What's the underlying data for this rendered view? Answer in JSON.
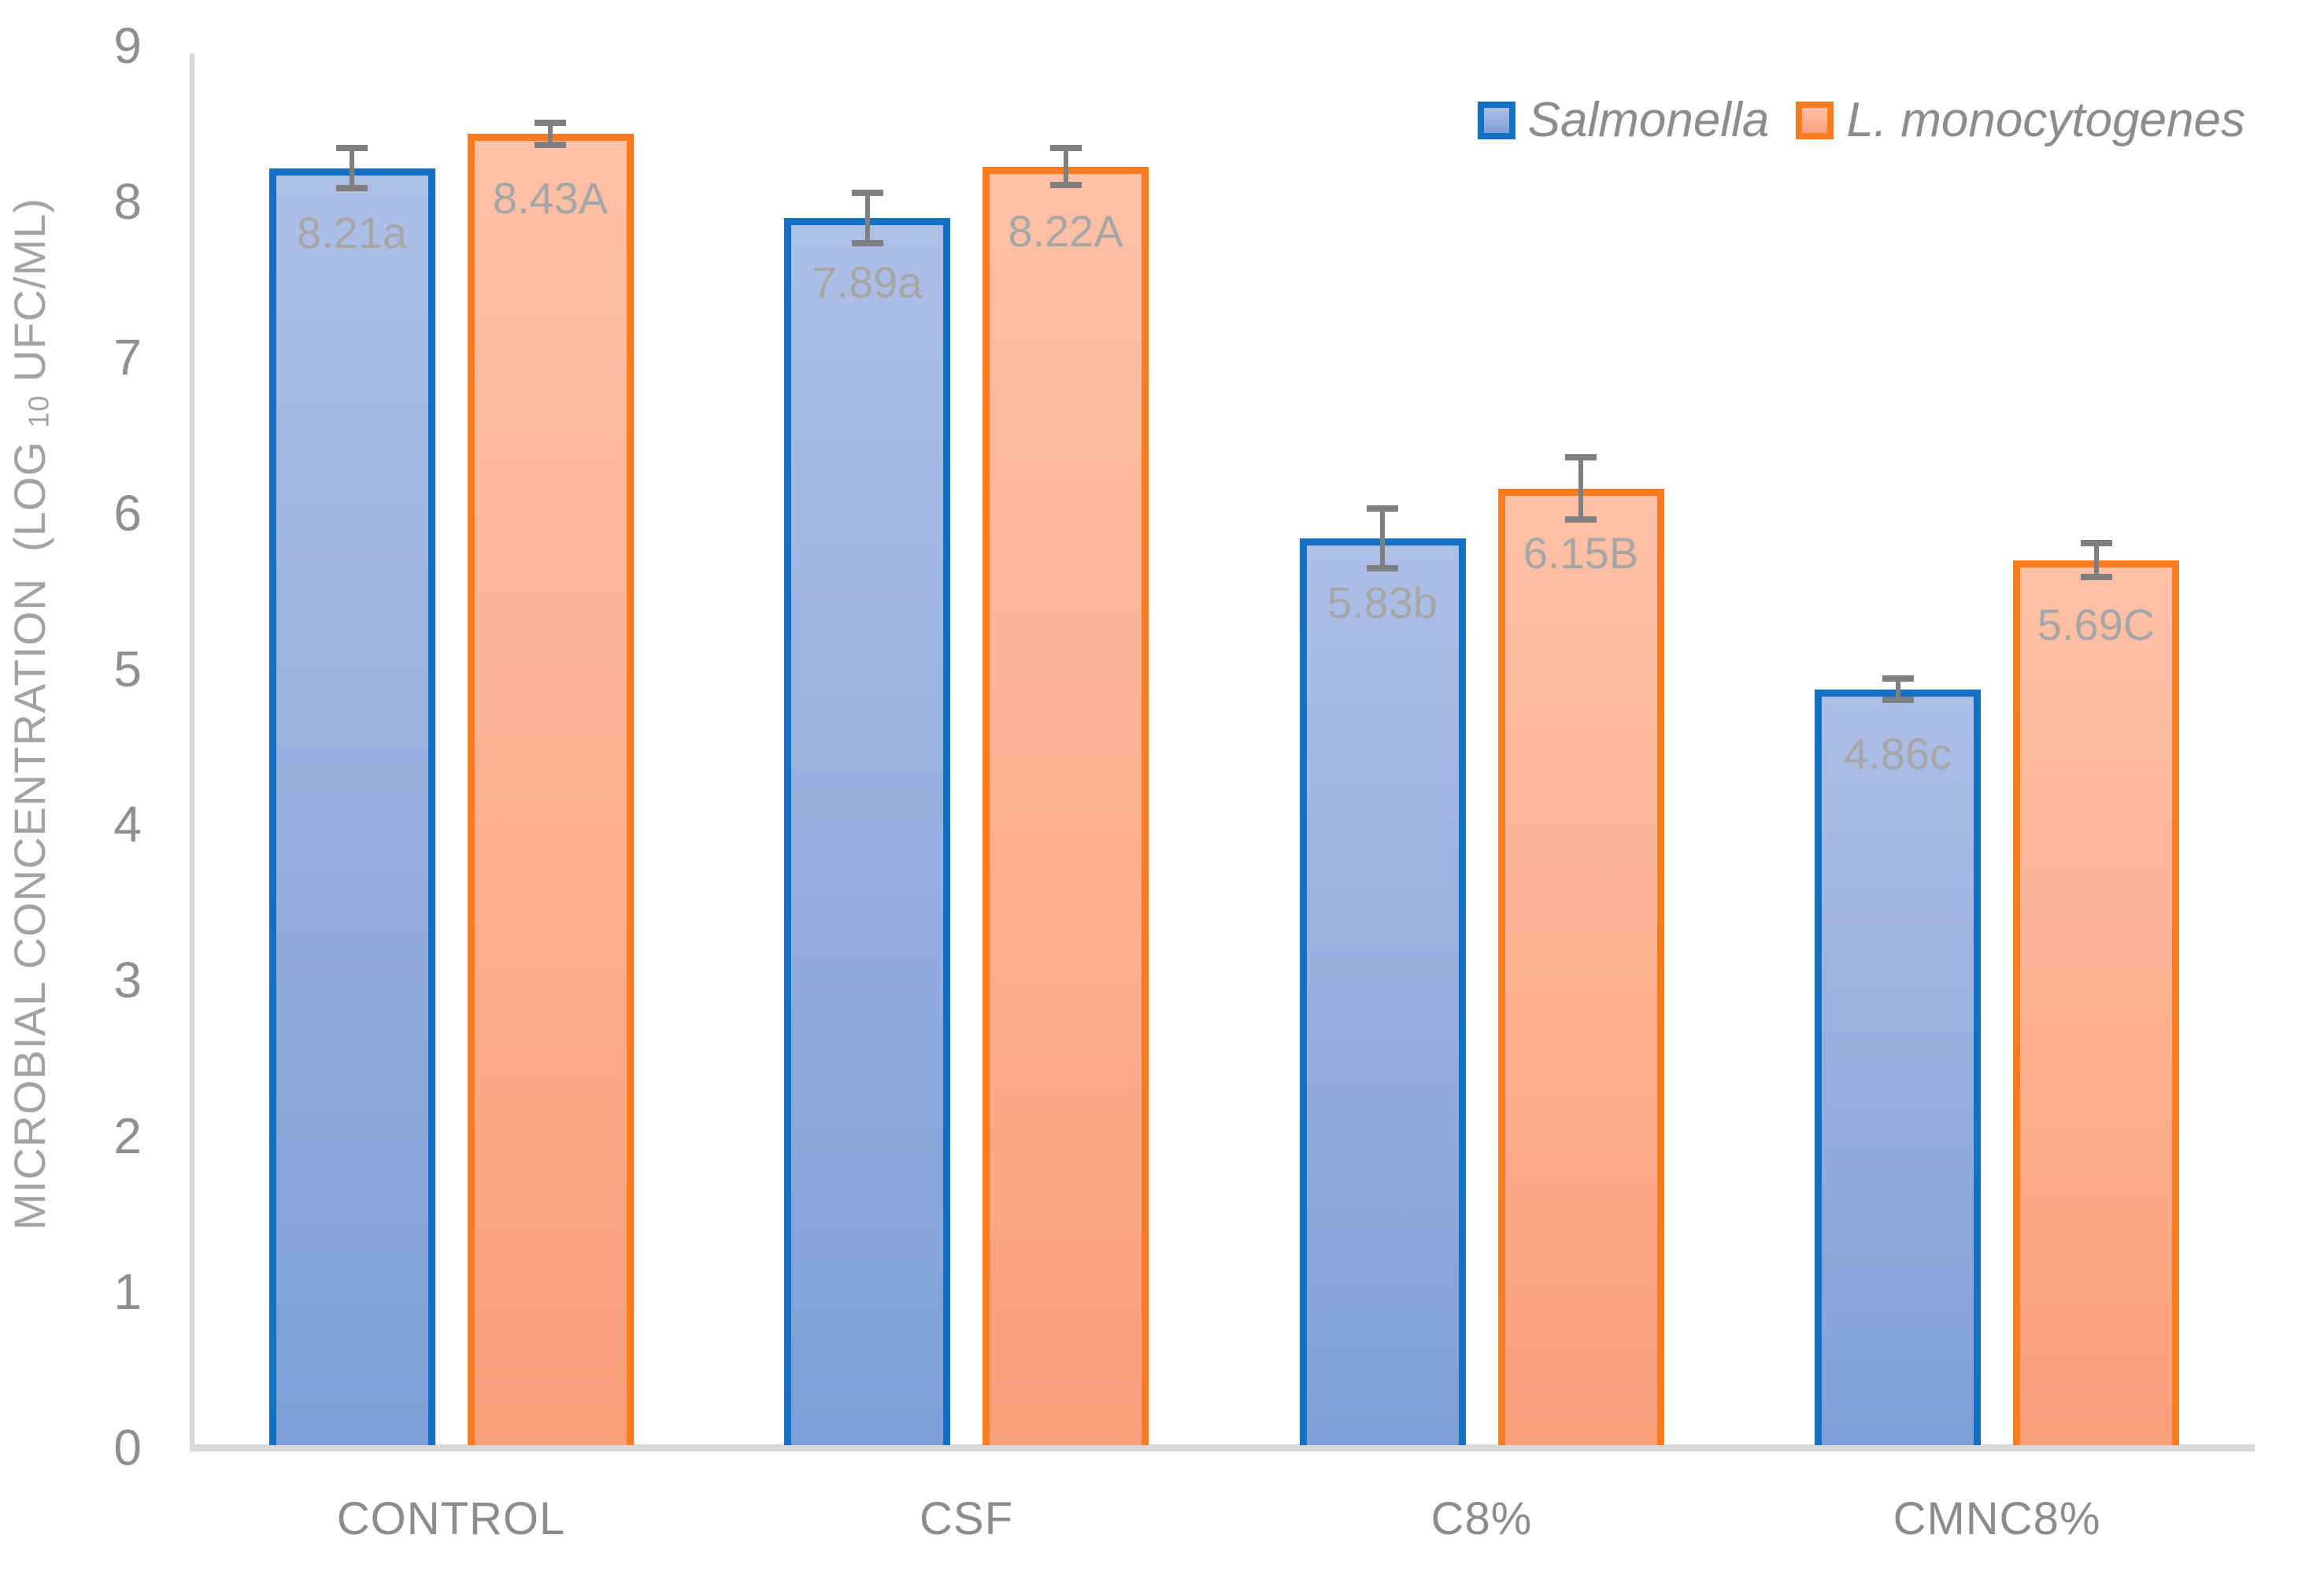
{
  "y_axis": {
    "title_prefix": "MICROBIAL CONCENTRATION  (LOG ",
    "title_sub": "10",
    "title_suffix": " UFC/ML)",
    "ticks": [
      "0",
      "1",
      "2",
      "3",
      "4",
      "5",
      "6",
      "7",
      "8",
      "9"
    ]
  },
  "colors": {
    "axis_line": "#d9d9d9",
    "tick_text": "#8f8f8f",
    "bar_label_text": "#a6a6a6",
    "legend_text": "#8c8c8c",
    "error_bar": "#7f7f7f",
    "salmonella_border": "#1470c4",
    "salmonella_fill_top": "#aebfe6",
    "salmonella_fill_bottom": "#7e9fd6",
    "monocytogenes_border": "#f97d20",
    "monocytogenes_fill_top": "#fdc1a7",
    "monocytogenes_fill_bottom": "#fa9f7c"
  },
  "chart_data": {
    "type": "bar",
    "title": "",
    "xlabel": "",
    "ylabel": "MICROBIAL CONCENTRATION (LOG 10 UFC/ML)",
    "ylim": [
      0,
      9
    ],
    "ytick_step": 1,
    "grid": false,
    "legend_position": "top-right",
    "categories": [
      "CONTROL",
      "CSF",
      "C8%",
      "CMNC8%"
    ],
    "series": [
      {
        "name": "Salmonella",
        "values": [
          8.21,
          7.89,
          5.83,
          4.86
        ],
        "bar_labels": [
          "8.21a",
          "7.89a",
          "5.83b",
          "4.86c"
        ],
        "error_bars": [
          0.13,
          0.16,
          0.19,
          0.07
        ],
        "fill_top": "#aebfe6",
        "fill_bottom": "#7e9fd6",
        "border": "#1470c4"
      },
      {
        "name": "L. monocytogenes",
        "values": [
          8.43,
          8.22,
          6.15,
          5.69
        ],
        "bar_labels": [
          "8.43A",
          "8.22A",
          "6.15B",
          "5.69C"
        ],
        "error_bars": [
          0.07,
          0.12,
          0.2,
          0.11
        ],
        "fill_top": "#fdc1a7",
        "fill_bottom": "#fa9f7c",
        "border": "#f97d20"
      }
    ]
  }
}
